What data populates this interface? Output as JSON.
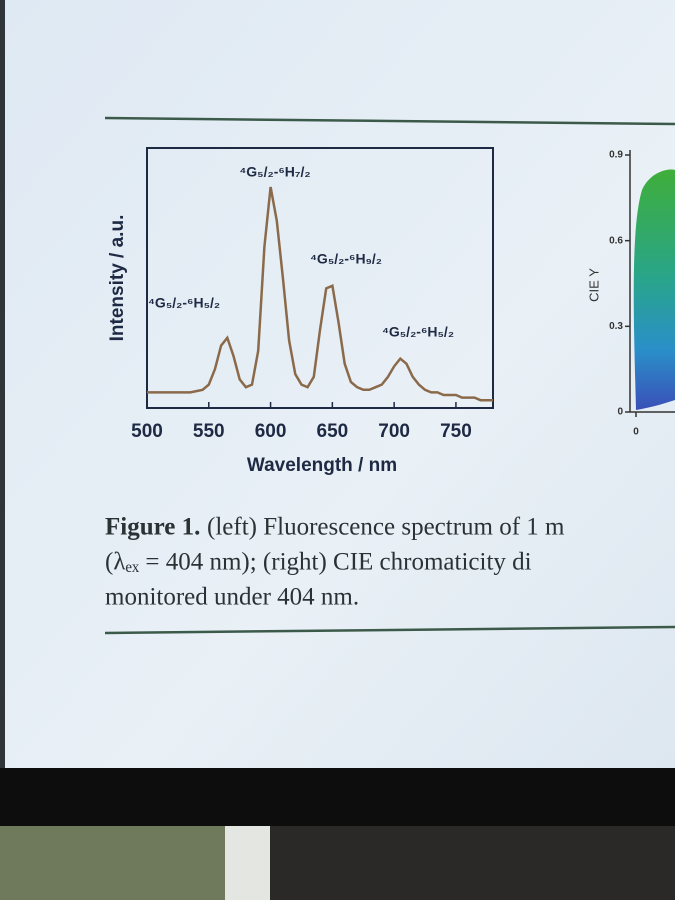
{
  "chart_data": [
    {
      "type": "line",
      "xlabel": "Wavelength / nm",
      "ylabel": "Intensity / a.u.",
      "x": [
        500,
        505,
        510,
        515,
        520,
        525,
        530,
        535,
        540,
        545,
        550,
        555,
        560,
        565,
        570,
        575,
        580,
        585,
        590,
        595,
        600,
        605,
        610,
        615,
        620,
        625,
        630,
        635,
        640,
        645,
        650,
        655,
        660,
        665,
        670,
        675,
        680,
        685,
        690,
        695,
        700,
        705,
        710,
        715,
        720,
        725,
        730,
        735,
        740,
        745,
        750,
        755,
        760,
        765,
        770,
        775,
        780
      ],
      "values": [
        6,
        6,
        6,
        6,
        6,
        6,
        6,
        6,
        6.5,
        7,
        9,
        15,
        24,
        27,
        20,
        11,
        8,
        9,
        22,
        62,
        85,
        72,
        50,
        26,
        13,
        9,
        8,
        12,
        30,
        46,
        47,
        33,
        17,
        10,
        8,
        7,
        7,
        8,
        9,
        12,
        16,
        19,
        17,
        12,
        9,
        7,
        6,
        6,
        5,
        5,
        5,
        4,
        4,
        4,
        3,
        3,
        3
      ],
      "color": "#8a6a4a",
      "xlim": [
        500,
        780
      ],
      "ylim": [
        0,
        100
      ],
      "xticks": [
        500,
        550,
        600,
        650,
        700,
        750
      ],
      "annotations": [
        "⁴G₅/₂-⁶H₇/₂",
        "⁴G₅/₂-⁶H₉/₂",
        "⁴G₅/₂-⁶H₅/₂",
        "⁴G₅/₂-⁶H₅/₂"
      ]
    },
    {
      "type": "cie",
      "ylabel": "CIE Y",
      "xlim": [
        0,
        0.8
      ],
      "ylim": [
        0,
        0.9
      ],
      "xticks": [
        0
      ],
      "yticks": [
        0,
        0.3,
        0.6,
        0.9
      ]
    }
  ],
  "caption": {
    "label": "Figure 1.",
    "lines": [
      " (left) Fluorescence spectrum of 1 m",
      "(λₑₓ = 404 nm); (right) CIE chromaticity di",
      "monitored under 404 nm."
    ]
  }
}
